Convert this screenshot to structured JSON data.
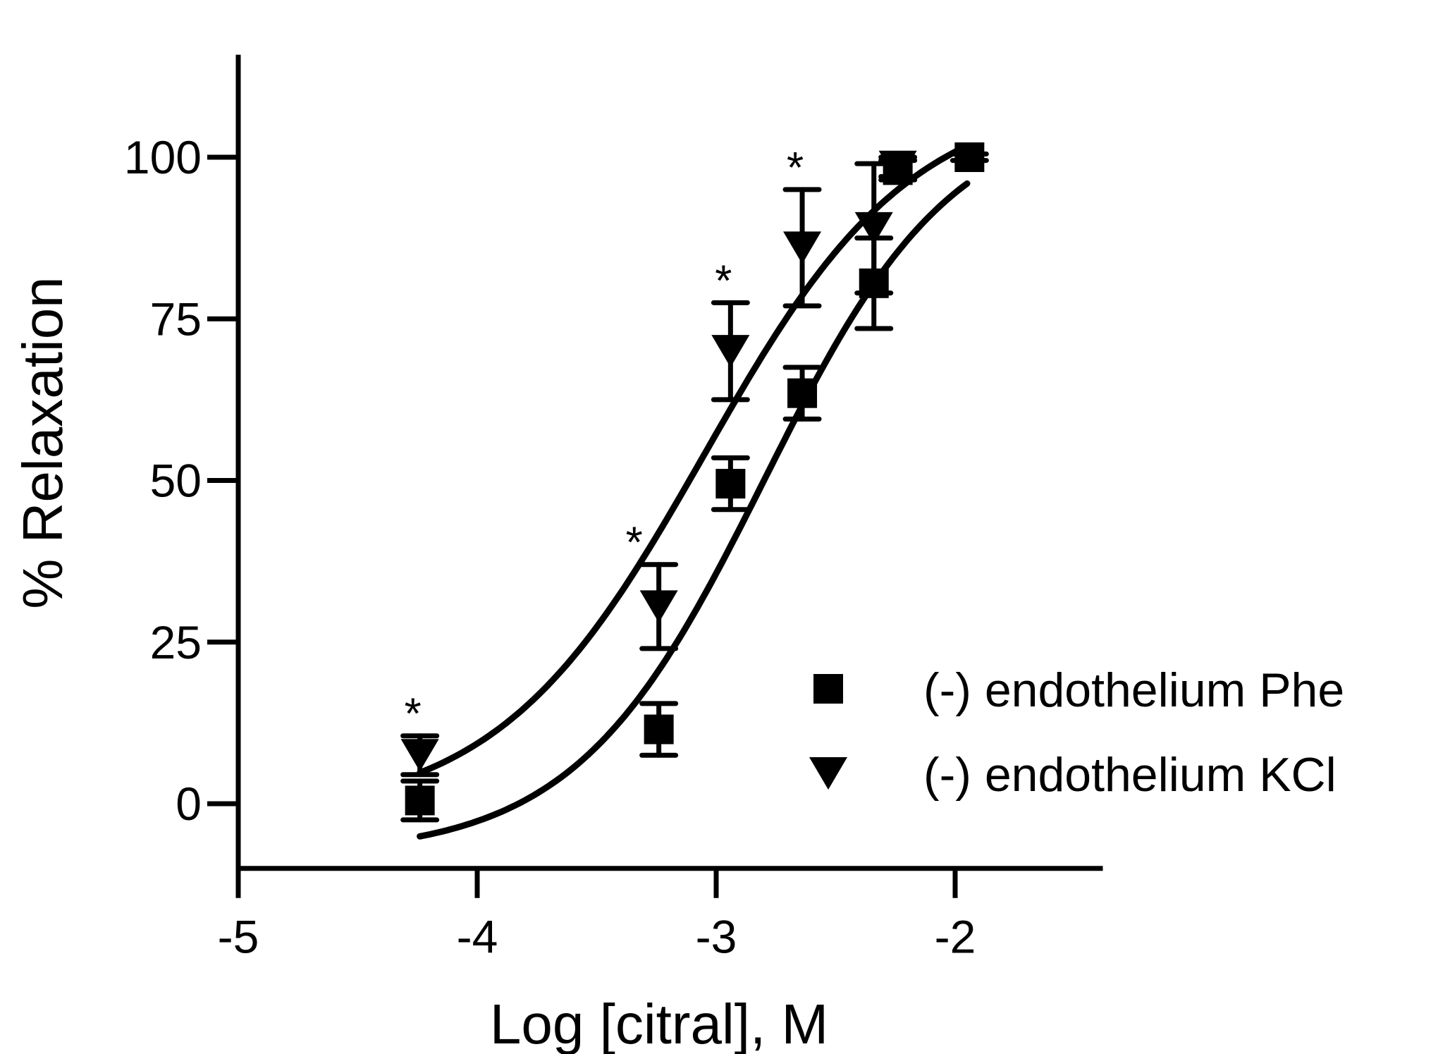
{
  "chart_data": {
    "type": "scatter",
    "title": "",
    "xlabel": "Log [citral], M",
    "ylabel": "% Relaxation",
    "xlim": [
      -5,
      -1.5
    ],
    "ylim": [
      -10,
      120
    ],
    "xticks": [
      -5,
      -4,
      -3,
      -2
    ],
    "xtick_labels": [
      "-5",
      "-4",
      "-3",
      "-2"
    ],
    "yticks": [
      0,
      25,
      50,
      75,
      100
    ],
    "ytick_labels": [
      "0",
      "25",
      "50",
      "75",
      "100"
    ],
    "legend_position": "bottom-right",
    "significance_label": "*",
    "series": [
      {
        "name": "(-) endothelium Phe",
        "marker": "square",
        "x": [
          -4.24,
          -3.24,
          -2.94,
          -2.64,
          -2.34,
          -2.24,
          -1.94
        ],
        "y": [
          0.5,
          11.5,
          49.5,
          63.5,
          80.5,
          98.0,
          100.0
        ],
        "err": [
          3.0,
          4.0,
          4.0,
          4.0,
          7.0,
          1.5,
          0.5
        ],
        "fit": {
          "bottom": -8,
          "top": 108,
          "logEC50": -2.8,
          "hill": 1.1,
          "x_range": [
            -4.24,
            -1.95
          ]
        }
      },
      {
        "name": "(-) endothelium KCl",
        "marker": "triangle-down",
        "x": [
          -4.24,
          -3.24,
          -2.94,
          -2.64,
          -2.34,
          -2.24
        ],
        "y": [
          7.5,
          30.5,
          70.0,
          86.0,
          89.0,
          98.5
        ],
        "err": [
          3.0,
          6.5,
          7.5,
          9.0,
          10.0,
          1.5
        ],
        "significant": [
          true,
          true,
          true,
          true,
          false,
          false
        ],
        "fit": {
          "bottom": -2,
          "top": 110,
          "logEC50": -3.05,
          "hill": 1.0,
          "x_range": [
            -4.24,
            -1.95
          ]
        }
      }
    ]
  }
}
